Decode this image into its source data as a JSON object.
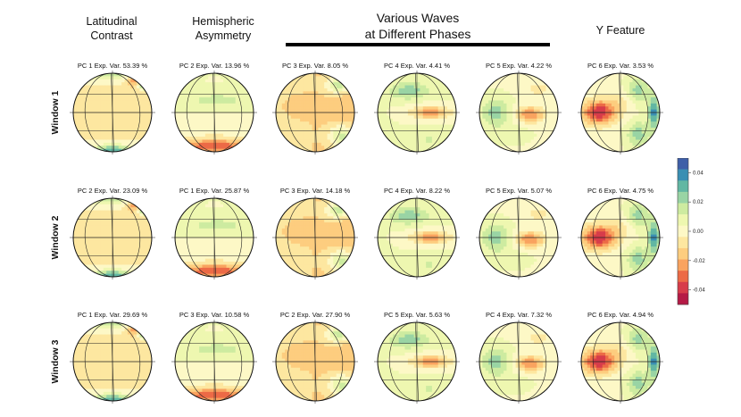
{
  "column_headers": [
    {
      "line1": "Latitudinal",
      "line2": "Contrast"
    },
    {
      "line1": "Hemispheric",
      "line2": "Asymmetry"
    },
    {
      "line1": "Various Waves",
      "line2": "at Different Phases"
    },
    {
      "line1": "Y Feature",
      "line2": ""
    }
  ],
  "row_labels": [
    "Window 1",
    "Window 2",
    "Window 3"
  ],
  "chart_data": {
    "type": "heatmap",
    "description": "Orthographic globe maps of principal components",
    "colorbar": {
      "ticks": [
        "0.04",
        "0.02",
        "0.00",
        "-0.02",
        "-0.04"
      ],
      "range": [
        -0.05,
        0.05
      ],
      "colors": [
        "#3f5fa8",
        "#3a8fb3",
        "#62b7a3",
        "#99d4a4",
        "#cdeba0",
        "#eef7b0",
        "#fdf8c6",
        "#fde7a0",
        "#fdcd7f",
        "#f9a35f",
        "#ec6a46",
        "#d73c4a",
        "#b51a46"
      ]
    },
    "panels": [
      [
        {
          "title": "PC 1 Exp. Var. 53.39 %",
          "pc": 1,
          "exp_var": 53.39,
          "pattern": "latitudinal"
        },
        {
          "title": "PC 2 Exp. Var. 13.96 %",
          "pc": 2,
          "exp_var": 13.96,
          "pattern": "hemispheric"
        },
        {
          "title": "PC 3 Exp. Var. 8.05 %",
          "pc": 3,
          "exp_var": 8.05,
          "pattern": "wave-a"
        },
        {
          "title": "PC 4 Exp. Var. 4.41 %",
          "pc": 4,
          "exp_var": 4.41,
          "pattern": "wave-b"
        },
        {
          "title": "PC 5 Exp. Var. 4.22 %",
          "pc": 5,
          "exp_var": 4.22,
          "pattern": "wave-c"
        },
        {
          "title": "PC 6 Exp. Var. 3.53 %",
          "pc": 6,
          "exp_var": 3.53,
          "pattern": "y-feature"
        }
      ],
      [
        {
          "title": "PC 2 Exp. Var. 23.09 %",
          "pc": 2,
          "exp_var": 23.09,
          "pattern": "latitudinal"
        },
        {
          "title": "PC 1 Exp. Var. 25.87 %",
          "pc": 1,
          "exp_var": 25.87,
          "pattern": "hemispheric"
        },
        {
          "title": "PC 3 Exp. Var. 14.18 %",
          "pc": 3,
          "exp_var": 14.18,
          "pattern": "wave-a"
        },
        {
          "title": "PC 4 Exp. Var. 8.22 %",
          "pc": 4,
          "exp_var": 8.22,
          "pattern": "wave-b"
        },
        {
          "title": "PC 5 Exp. Var. 5.07 %",
          "pc": 5,
          "exp_var": 5.07,
          "pattern": "wave-c"
        },
        {
          "title": "PC 6 Exp. Var. 4.75 %",
          "pc": 6,
          "exp_var": 4.75,
          "pattern": "y-feature"
        }
      ],
      [
        {
          "title": "PC 1 Exp. Var. 29.69 %",
          "pc": 1,
          "exp_var": 29.69,
          "pattern": "latitudinal"
        },
        {
          "title": "PC 3 Exp. Var. 10.58 %",
          "pc": 3,
          "exp_var": 10.58,
          "pattern": "hemispheric"
        },
        {
          "title": "PC 2 Exp. Var. 27.90 %",
          "pc": 2,
          "exp_var": 27.9,
          "pattern": "wave-a"
        },
        {
          "title": "PC 5 Exp. Var. 5.63 %",
          "pc": 5,
          "exp_var": 5.63,
          "pattern": "wave-b"
        },
        {
          "title": "PC 4 Exp. Var. 7.32 %",
          "pc": 4,
          "exp_var": 7.32,
          "pattern": "wave-c"
        },
        {
          "title": "PC 6 Exp. Var. 4.94 %",
          "pc": 6,
          "exp_var": 4.94,
          "pattern": "y-feature"
        }
      ]
    ]
  }
}
